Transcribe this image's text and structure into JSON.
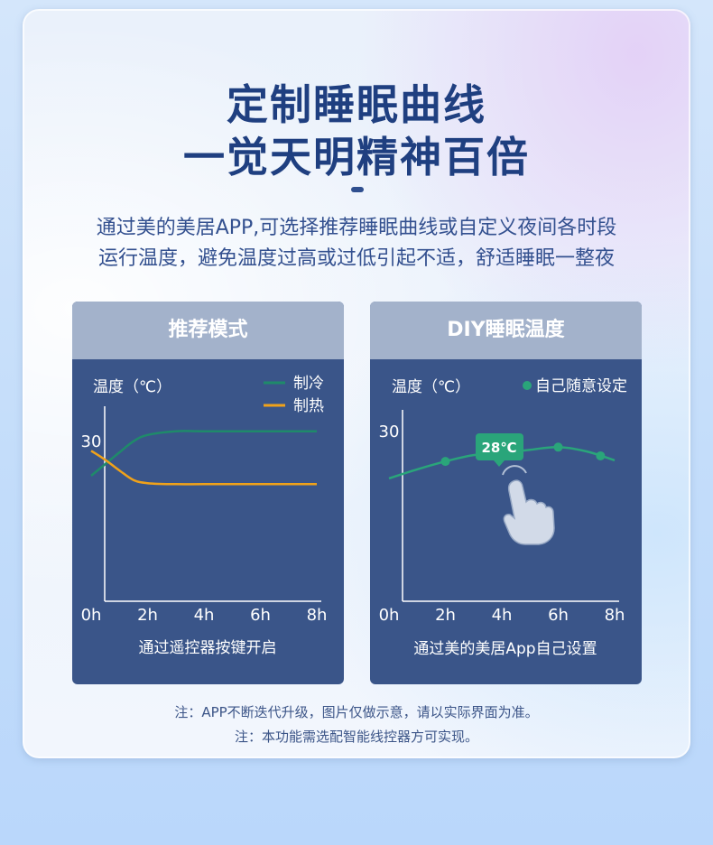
{
  "header": {
    "title_line1": "定制睡眠曲线",
    "title_line2": "一觉天明精神百倍",
    "desc_line1": "通过美的美居APP,可选择推荐睡眠曲线或自定义夜间各时段",
    "desc_line2": "运行温度，避免温度过高或过低引起不适，舒适睡眠一整夜"
  },
  "panels": {
    "recommended": {
      "title": "推荐模式",
      "caption": "通过遥控器按键开启"
    },
    "diy": {
      "title": "DIY睡眠温度",
      "caption": "通过美的美居App自己设置",
      "tooltip": "28℃"
    }
  },
  "notes": {
    "line1": "注：APP不断迭代升级，图片仅做示意，请以实际界面为准。",
    "line2": "注：本功能需选配智能线控器方可实现。"
  },
  "colors": {
    "cool": "#1f8a6a",
    "heat": "#f0a21a",
    "diy": "#2aa57a",
    "panel_bg": "#3a5589"
  },
  "chart_data": [
    {
      "type": "line",
      "ylabel": "温度（℃）",
      "x_ticks": [
        "0h",
        "2h",
        "4h",
        "6h",
        "8h"
      ],
      "y_ticks": [
        "0h",
        "30"
      ],
      "series": [
        {
          "name": "制冷",
          "x": [
            0,
            0.5,
            1,
            1.5,
            2,
            3,
            4,
            6,
            8
          ],
          "y": [
            23.7,
            25.9,
            28.1,
            30.2,
            31.4,
            32.1,
            32.1,
            32.1,
            32.1
          ]
        },
        {
          "name": "制热",
          "x": [
            0,
            0.5,
            1,
            1.5,
            2,
            3,
            4,
            6,
            8
          ],
          "y": [
            28.4,
            26.7,
            24.7,
            22.9,
            22.3,
            22.1,
            22.1,
            22.1,
            22.1
          ]
        }
      ]
    },
    {
      "type": "line",
      "ylabel": "温度（℃）",
      "legend": "自己随意设定",
      "x_ticks": [
        "0h",
        "2h",
        "4h",
        "6h",
        "8h"
      ],
      "y_ticks": [
        "0h",
        "30"
      ],
      "series": [
        {
          "name": "自己随意设定",
          "x": [
            0,
            1,
            2,
            3,
            4,
            5,
            6,
            7,
            8
          ],
          "y": [
            23.2,
            24.9,
            26.4,
            27.6,
            28.0,
            28.6,
            29.1,
            28.3,
            26.6
          ]
        }
      ],
      "markers_x": [
        2,
        4,
        6,
        7.5
      ]
    }
  ]
}
